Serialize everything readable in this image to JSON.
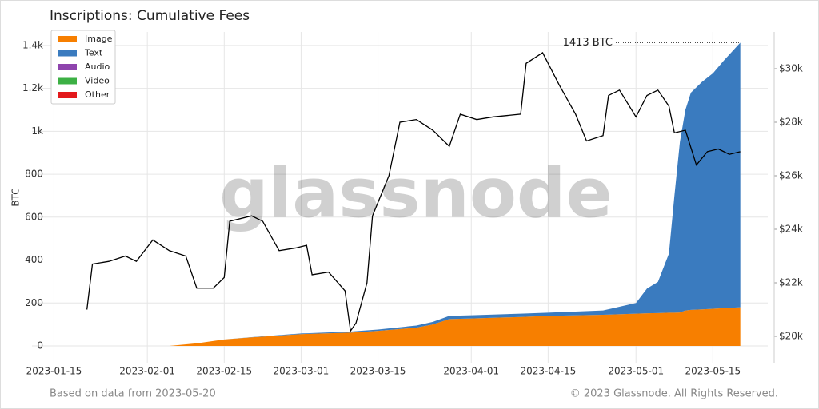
{
  "chart_data": {
    "type": "stacked-area",
    "title": "Inscriptions: Cumulative Fees",
    "ylabel": "BTC",
    "annotation": "1413 BTC",
    "watermark": "glassnode",
    "source": "Based on data from 2023-05-20",
    "copyright": "© 2023 Glassnode. All Rights Reserved.",
    "legend": "upper left",
    "grid": true,
    "xlim": [
      "2023-01-11",
      "2023-05-25"
    ],
    "xticks": [
      "2023-01-15",
      "2023-02-01",
      "2023-02-15",
      "2023-03-01",
      "2023-03-15",
      "2023-04-01",
      "2023-04-15",
      "2023-05-01",
      "2023-05-15"
    ],
    "ylim": [
      -82,
      1463
    ],
    "yticks": [
      0,
      200,
      400,
      600,
      800,
      {
        "value": 1000,
        "label": "1k"
      },
      {
        "value": 1200,
        "label": "1.2k"
      },
      {
        "value": 1400,
        "label": "1.4k"
      }
    ],
    "y2lim": [
      18985,
      31373
    ],
    "y2ticks": [
      {
        "value": 20000,
        "label": "$20k"
      },
      {
        "value": 22000,
        "label": "$22k"
      },
      {
        "value": 24000,
        "label": "$24k"
      },
      {
        "value": 26000,
        "label": "$26k"
      },
      {
        "value": 28000,
        "label": "$28k"
      },
      {
        "value": 30000,
        "label": "$30k"
      }
    ],
    "x": [
      "2023-02-05",
      "2023-02-10",
      "2023-02-15",
      "2023-02-20",
      "2023-03-01",
      "2023-03-10",
      "2023-03-15",
      "2023-03-22",
      "2023-03-25",
      "2023-03-28",
      "2023-04-01",
      "2023-04-10",
      "2023-04-15",
      "2023-04-25",
      "2023-05-01",
      "2023-05-03",
      "2023-05-05",
      "2023-05-07",
      "2023-05-08",
      "2023-05-09",
      "2023-05-10",
      "2023-05-11",
      "2023-05-13",
      "2023-05-15",
      "2023-05-17",
      "2023-05-20"
    ],
    "series": [
      {
        "name": "Image",
        "color": "#f77f00",
        "values": [
          0,
          12,
          30,
          40,
          55,
          62,
          70,
          85,
          100,
          125,
          128,
          135,
          140,
          145,
          150,
          152,
          153,
          155,
          155,
          156,
          165,
          168,
          170,
          173,
          176,
          180
        ]
      },
      {
        "name": "Text",
        "color": "#3a7bbf",
        "values": [
          0,
          0,
          0,
          1,
          3,
          5,
          6,
          10,
          12,
          15,
          15,
          15,
          15,
          20,
          50,
          115,
          145,
          275,
          545,
          794,
          935,
          1012,
          1060,
          1097,
          1154,
          1233
        ]
      },
      {
        "name": "Audio",
        "color": "#8e44ad",
        "values": [
          0,
          0,
          0,
          0,
          0,
          0,
          0,
          0,
          0,
          0,
          0,
          0,
          0,
          0,
          0,
          0,
          0,
          0,
          0,
          0,
          0,
          0,
          0,
          0,
          0,
          0
        ]
      },
      {
        "name": "Video",
        "color": "#3cb044",
        "values": [
          0,
          0,
          0,
          0,
          0,
          0,
          0,
          0,
          0,
          0,
          0,
          0,
          0,
          0,
          0,
          0,
          0,
          0,
          0,
          0,
          0,
          0,
          0,
          0,
          0,
          0
        ]
      },
      {
        "name": "Other",
        "color": "#e3191c",
        "values": [
          0,
          0,
          0,
          0,
          0,
          0,
          0,
          0,
          0,
          0,
          0,
          0,
          0,
          0,
          0,
          0,
          0,
          0,
          0,
          0,
          0,
          0,
          0,
          0,
          0,
          0
        ]
      }
    ],
    "price": {
      "color": "#000000",
      "axis": "y2",
      "x": [
        "2023-01-21",
        "2023-01-22",
        "2023-01-25",
        "2023-01-28",
        "2023-01-30",
        "2023-02-02",
        "2023-02-05",
        "2023-02-08",
        "2023-02-10",
        "2023-02-13",
        "2023-02-15",
        "2023-02-16",
        "2023-02-20",
        "2023-02-22",
        "2023-02-25",
        "2023-02-28",
        "2023-03-02",
        "2023-03-03",
        "2023-03-06",
        "2023-03-09",
        "2023-03-10",
        "2023-03-11",
        "2023-03-13",
        "2023-03-14",
        "2023-03-17",
        "2023-03-19",
        "2023-03-22",
        "2023-03-25",
        "2023-03-28",
        "2023-03-30",
        "2023-04-02",
        "2023-04-05",
        "2023-04-10",
        "2023-04-11",
        "2023-04-14",
        "2023-04-17",
        "2023-04-20",
        "2023-04-22",
        "2023-04-25",
        "2023-04-26",
        "2023-04-28",
        "2023-05-01",
        "2023-05-03",
        "2023-05-05",
        "2023-05-07",
        "2023-05-08",
        "2023-05-10",
        "2023-05-12",
        "2023-05-14",
        "2023-05-16",
        "2023-05-18",
        "2023-05-20"
      ],
      "values": [
        21000,
        22700,
        22800,
        23000,
        22800,
        23600,
        23200,
        23000,
        21800,
        21800,
        22200,
        24300,
        24500,
        24300,
        23200,
        23300,
        23400,
        22300,
        22400,
        21700,
        20200,
        20500,
        22000,
        24500,
        26000,
        28000,
        28100,
        27700,
        27100,
        28300,
        28100,
        28200,
        28300,
        30200,
        30600,
        29400,
        28300,
        27300,
        27500,
        29000,
        29200,
        28200,
        29000,
        29200,
        28600,
        27600,
        27700,
        26400,
        26900,
        27000,
        26800,
        26900
      ]
    }
  }
}
